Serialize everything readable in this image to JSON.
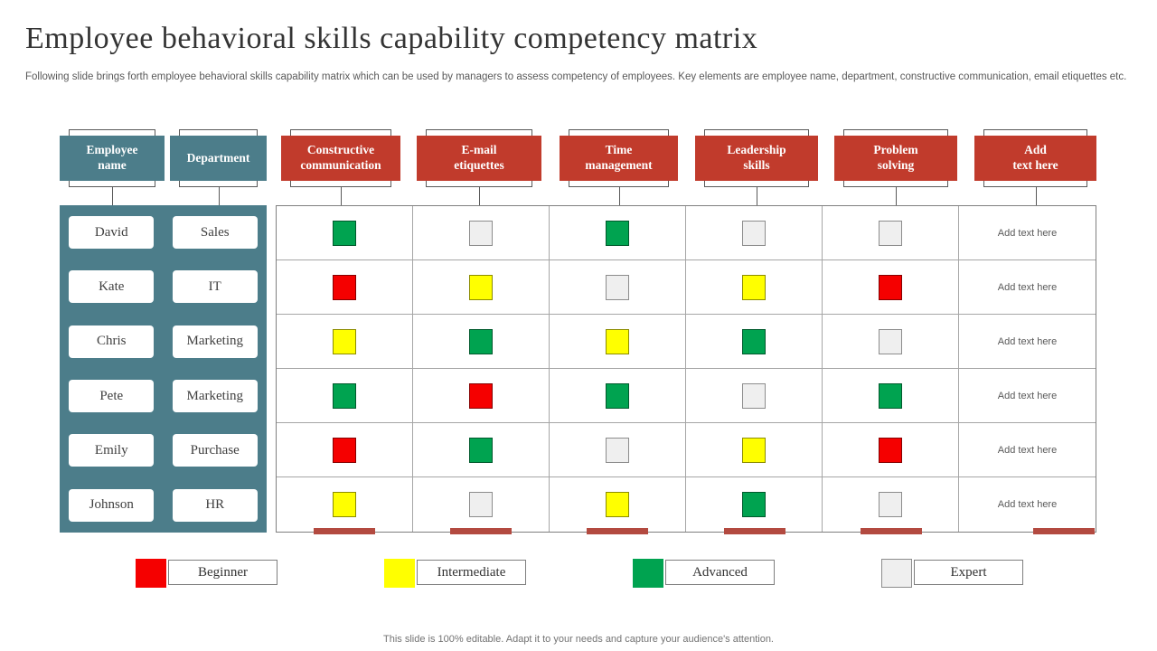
{
  "slide": {
    "title": "Employee behavioral skills capability competency matrix",
    "subtitle": "Following slide brings forth employee behavioral skills capability matrix which can be used by managers to assess competency of employees. Key elements are employee name, department, constructive communication, email etiquettes etc.",
    "footer": "This slide is 100% editable. Adapt it to your needs and capture your audience's attention."
  },
  "colors": {
    "teal": "#4C7D8A",
    "header_red": "#C13B2C",
    "bar_red": "#B34A40",
    "grid_line": "#A6A6A6"
  },
  "headers": [
    {
      "label": "Employee\nname",
      "style": "teal"
    },
    {
      "label": "Department",
      "style": "teal"
    },
    {
      "label": "Constructive\ncommunication",
      "style": "red"
    },
    {
      "label": "E-mail\netiquettes",
      "style": "red"
    },
    {
      "label": "Time\nmanagement",
      "style": "red"
    },
    {
      "label": "Leadership\nskills",
      "style": "red"
    },
    {
      "label": "Problem\nsolving",
      "style": "red"
    },
    {
      "label": "Add\ntext here",
      "style": "red"
    }
  ],
  "employees": [
    {
      "name": "David",
      "department": "Sales",
      "ratings": [
        "advanced",
        "expert",
        "advanced",
        "expert",
        "expert"
      ],
      "note": "Add text here"
    },
    {
      "name": "Kate",
      "department": "IT",
      "ratings": [
        "beginner",
        "intermediate",
        "expert",
        "intermediate",
        "beginner"
      ],
      "note": "Add text here"
    },
    {
      "name": "Chris",
      "department": "Marketing",
      "ratings": [
        "intermediate",
        "advanced",
        "intermediate",
        "advanced",
        "expert"
      ],
      "note": "Add text here"
    },
    {
      "name": "Pete",
      "department": "Marketing",
      "ratings": [
        "advanced",
        "beginner",
        "advanced",
        "expert",
        "advanced"
      ],
      "note": "Add text here"
    },
    {
      "name": "Emily",
      "department": "Purchase",
      "ratings": [
        "beginner",
        "advanced",
        "expert",
        "intermediate",
        "beginner"
      ],
      "note": "Add text here"
    },
    {
      "name": "Johnson",
      "department": "HR",
      "ratings": [
        "intermediate",
        "expert",
        "intermediate",
        "advanced",
        "expert"
      ],
      "note": "Add text here"
    }
  ],
  "legend": [
    {
      "key": "beginner",
      "label": "Beginner",
      "color": "#F50000"
    },
    {
      "key": "intermediate",
      "label": "Intermediate",
      "color": "#FFFF00"
    },
    {
      "key": "advanced",
      "label": "Advanced",
      "color": "#00A350"
    },
    {
      "key": "expert",
      "label": "Expert",
      "color": "#EFEFEF"
    }
  ]
}
